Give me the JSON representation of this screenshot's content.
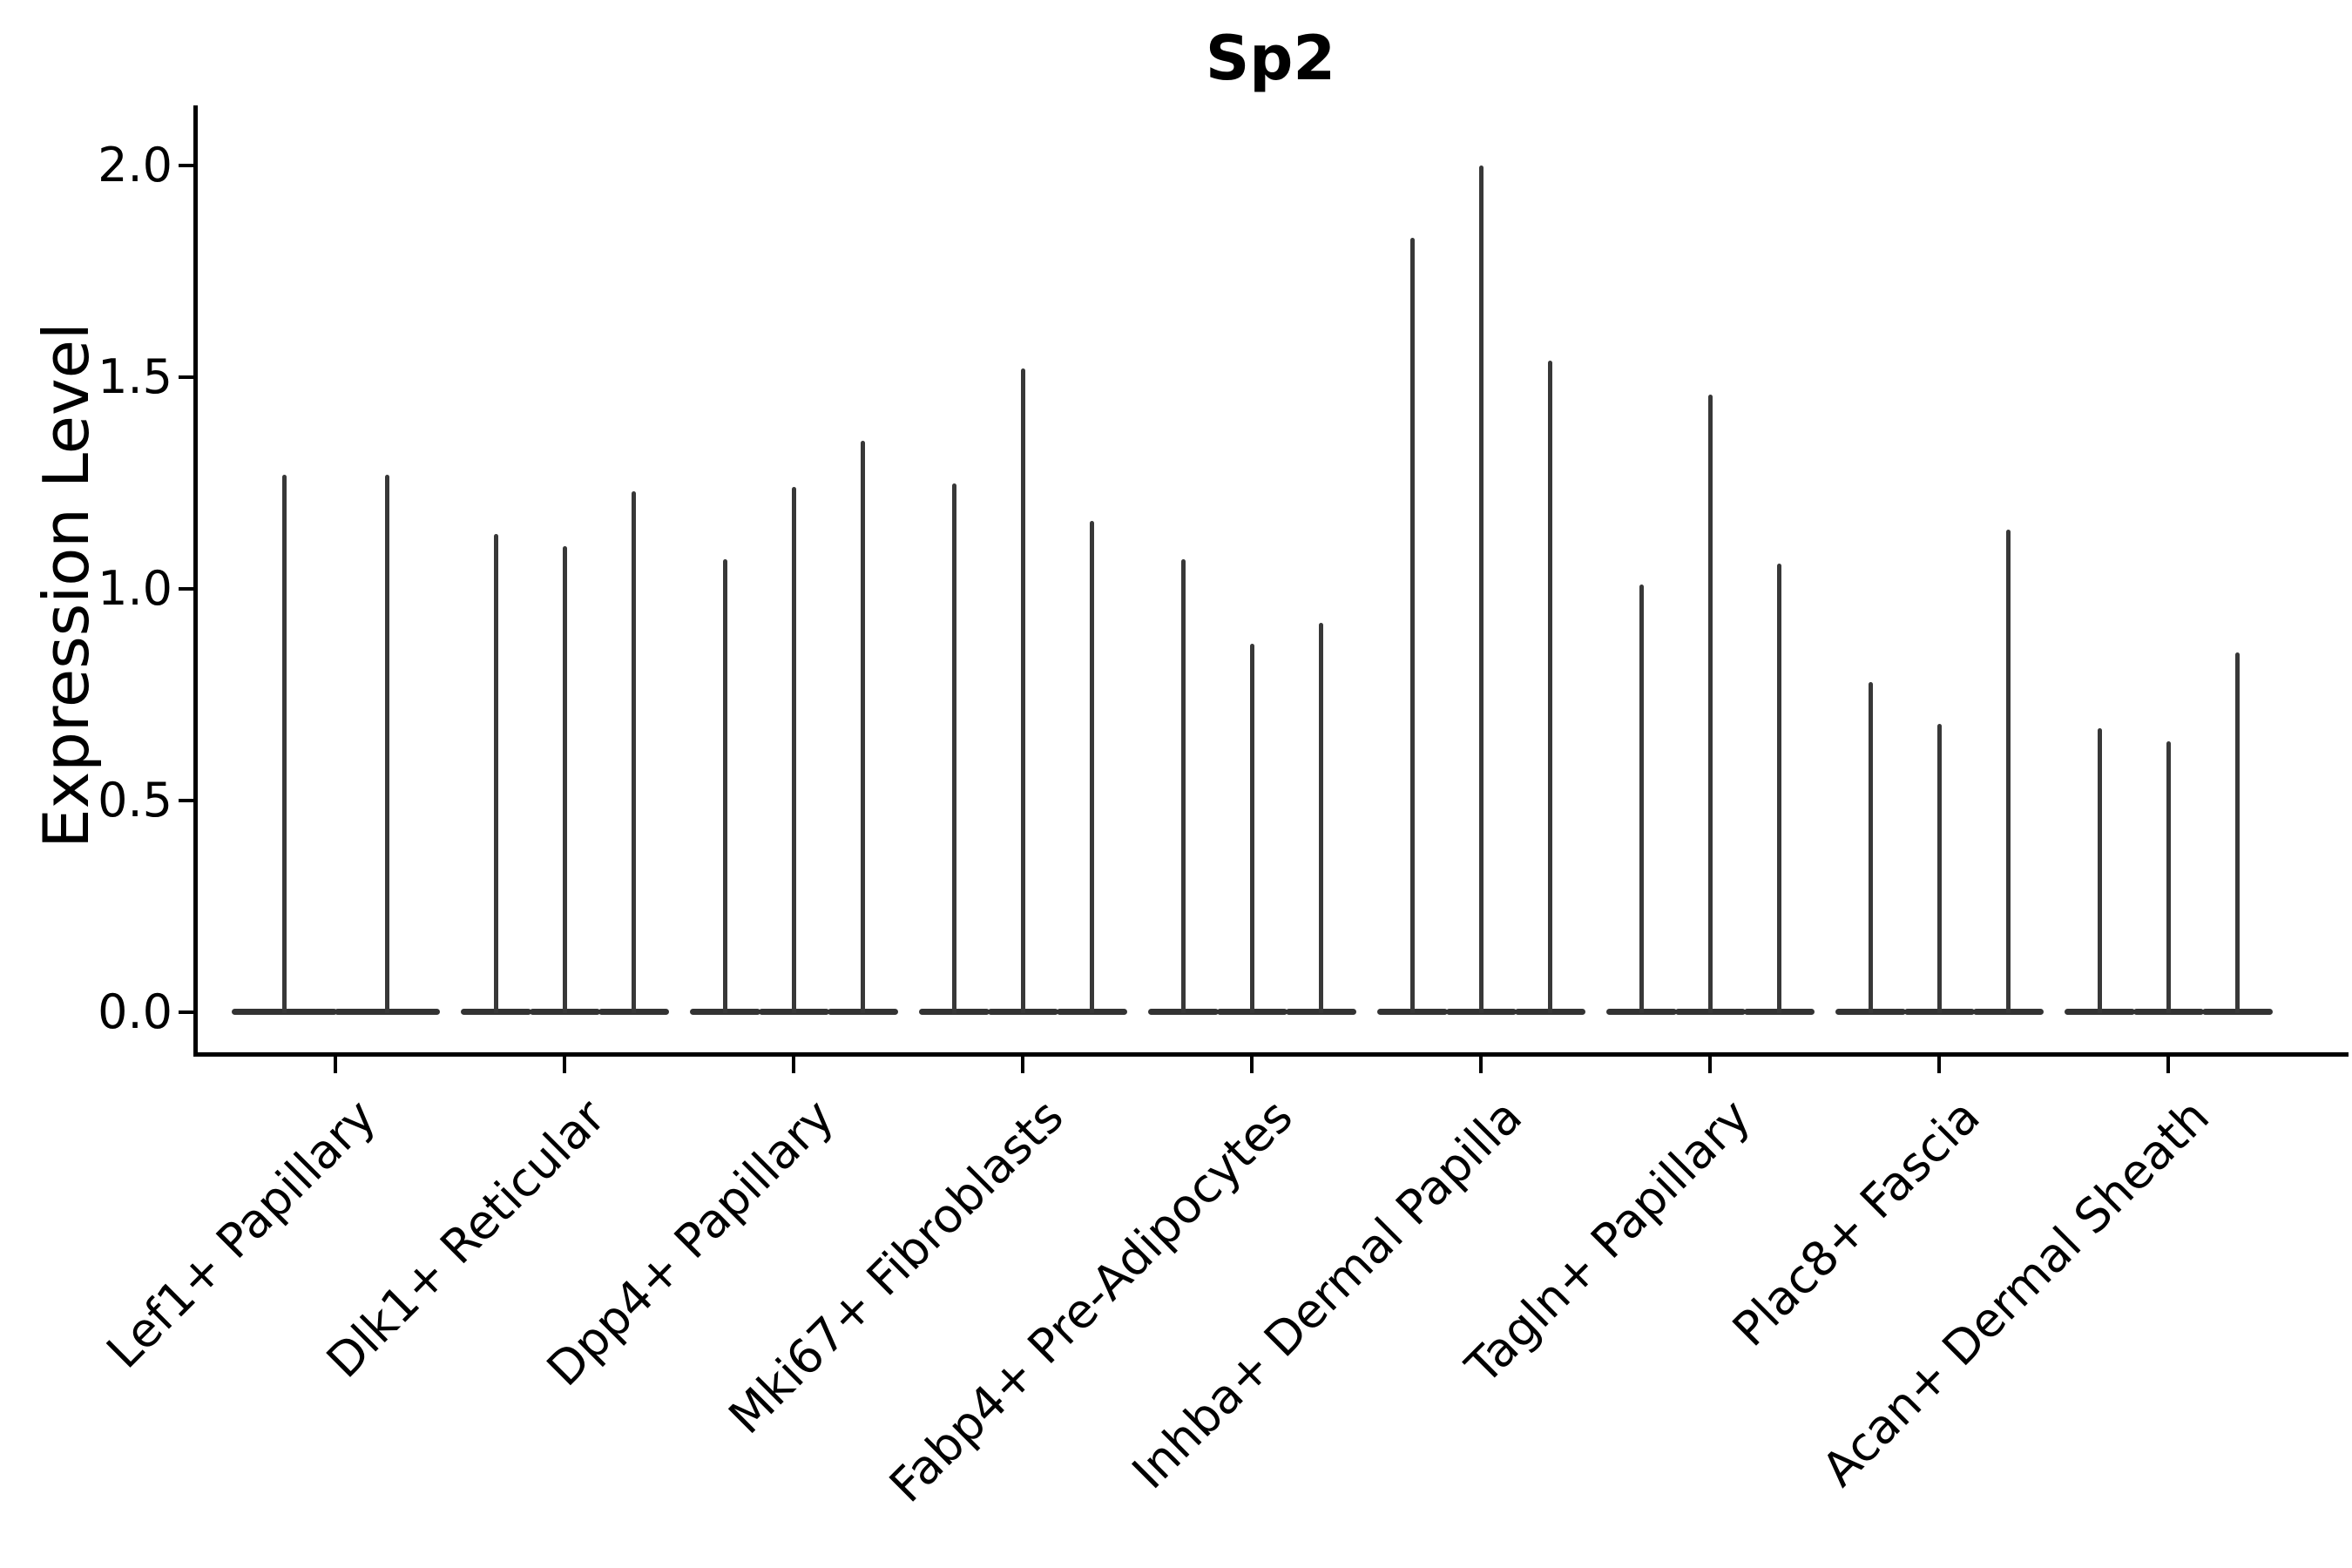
{
  "title": "Sp2",
  "axes": {
    "ylabel": "Expression Level",
    "ytick_labels": [
      "0.0",
      "0.5",
      "1.0",
      "1.5",
      "2.0"
    ]
  },
  "chart_data": {
    "type": "violin",
    "title": "Sp2",
    "xlabel": "",
    "ylabel": "Expression Level",
    "ylim": [
      -0.1,
      2.14
    ],
    "yticks": [
      0.0,
      0.5,
      1.0,
      1.5,
      2.0
    ],
    "grid": false,
    "legend": "none",
    "violin_color": "#383838",
    "style_note": "each violin is collapsed flat at 0 with a thin vertical spike up to its maximum expression value",
    "categories": [
      "Lef1+ Papillary",
      "Dlk1+ Reticular",
      "Dpp4+ Papillary",
      "Mki67+ Fibroblasts",
      "Fabp4+ Pre-Adipocytes",
      "Inhba+ Dermal Papilla",
      "Tagln+ Papillary",
      "Plac8+ Fascia",
      "Acan+ Dermal Sheath"
    ],
    "groups": [
      {
        "category": "Lef1+ Papillary",
        "violins": [
          {
            "offset": -59,
            "width": 121,
            "max": 1.27
          },
          {
            "offset": 59,
            "width": 121,
            "max": 1.27
          }
        ]
      },
      {
        "category": "Dlk1+ Reticular",
        "violins": [
          {
            "offset": -79,
            "width": 81,
            "max": 1.13
          },
          {
            "offset": 0,
            "width": 81,
            "max": 1.1
          },
          {
            "offset": 79,
            "width": 81,
            "max": 1.23
          }
        ]
      },
      {
        "category": "Dpp4+ Papillary",
        "violins": [
          {
            "offset": -79,
            "width": 81,
            "max": 1.07
          },
          {
            "offset": 0,
            "width": 81,
            "max": 1.24
          },
          {
            "offset": 79,
            "width": 81,
            "max": 1.35
          }
        ]
      },
      {
        "category": "Mki67+ Fibroblasts",
        "violins": [
          {
            "offset": -79,
            "width": 81,
            "max": 1.25
          },
          {
            "offset": 0,
            "width": 81,
            "max": 1.52
          },
          {
            "offset": 79,
            "width": 81,
            "max": 1.16
          }
        ]
      },
      {
        "category": "Fabp4+ Pre-Adipocytes",
        "violins": [
          {
            "offset": -79,
            "width": 81,
            "max": 1.07
          },
          {
            "offset": 0,
            "width": 81,
            "max": 0.87
          },
          {
            "offset": 79,
            "width": 81,
            "max": 0.92
          }
        ]
      },
      {
        "category": "Inhba+ Dermal Papilla",
        "violins": [
          {
            "offset": -79,
            "width": 81,
            "max": 1.83
          },
          {
            "offset": 0,
            "width": 81,
            "max": 2.0
          },
          {
            "offset": 79,
            "width": 81,
            "max": 1.54
          }
        ]
      },
      {
        "category": "Tagln+ Papillary",
        "violins": [
          {
            "offset": -79,
            "width": 81,
            "max": 1.01
          },
          {
            "offset": 0,
            "width": 81,
            "max": 1.46
          },
          {
            "offset": 79,
            "width": 81,
            "max": 1.06
          }
        ]
      },
      {
        "category": "Plac8+ Fascia",
        "violins": [
          {
            "offset": -79,
            "width": 81,
            "max": 0.78
          },
          {
            "offset": 0,
            "width": 81,
            "max": 0.68
          },
          {
            "offset": 79,
            "width": 81,
            "max": 1.14
          }
        ]
      },
      {
        "category": "Acan+ Dermal Sheath",
        "violins": [
          {
            "offset": -79,
            "width": 81,
            "max": 0.67
          },
          {
            "offset": 0,
            "width": 81,
            "max": 0.64
          },
          {
            "offset": 79,
            "width": 81,
            "max": 0.85
          }
        ]
      }
    ]
  }
}
